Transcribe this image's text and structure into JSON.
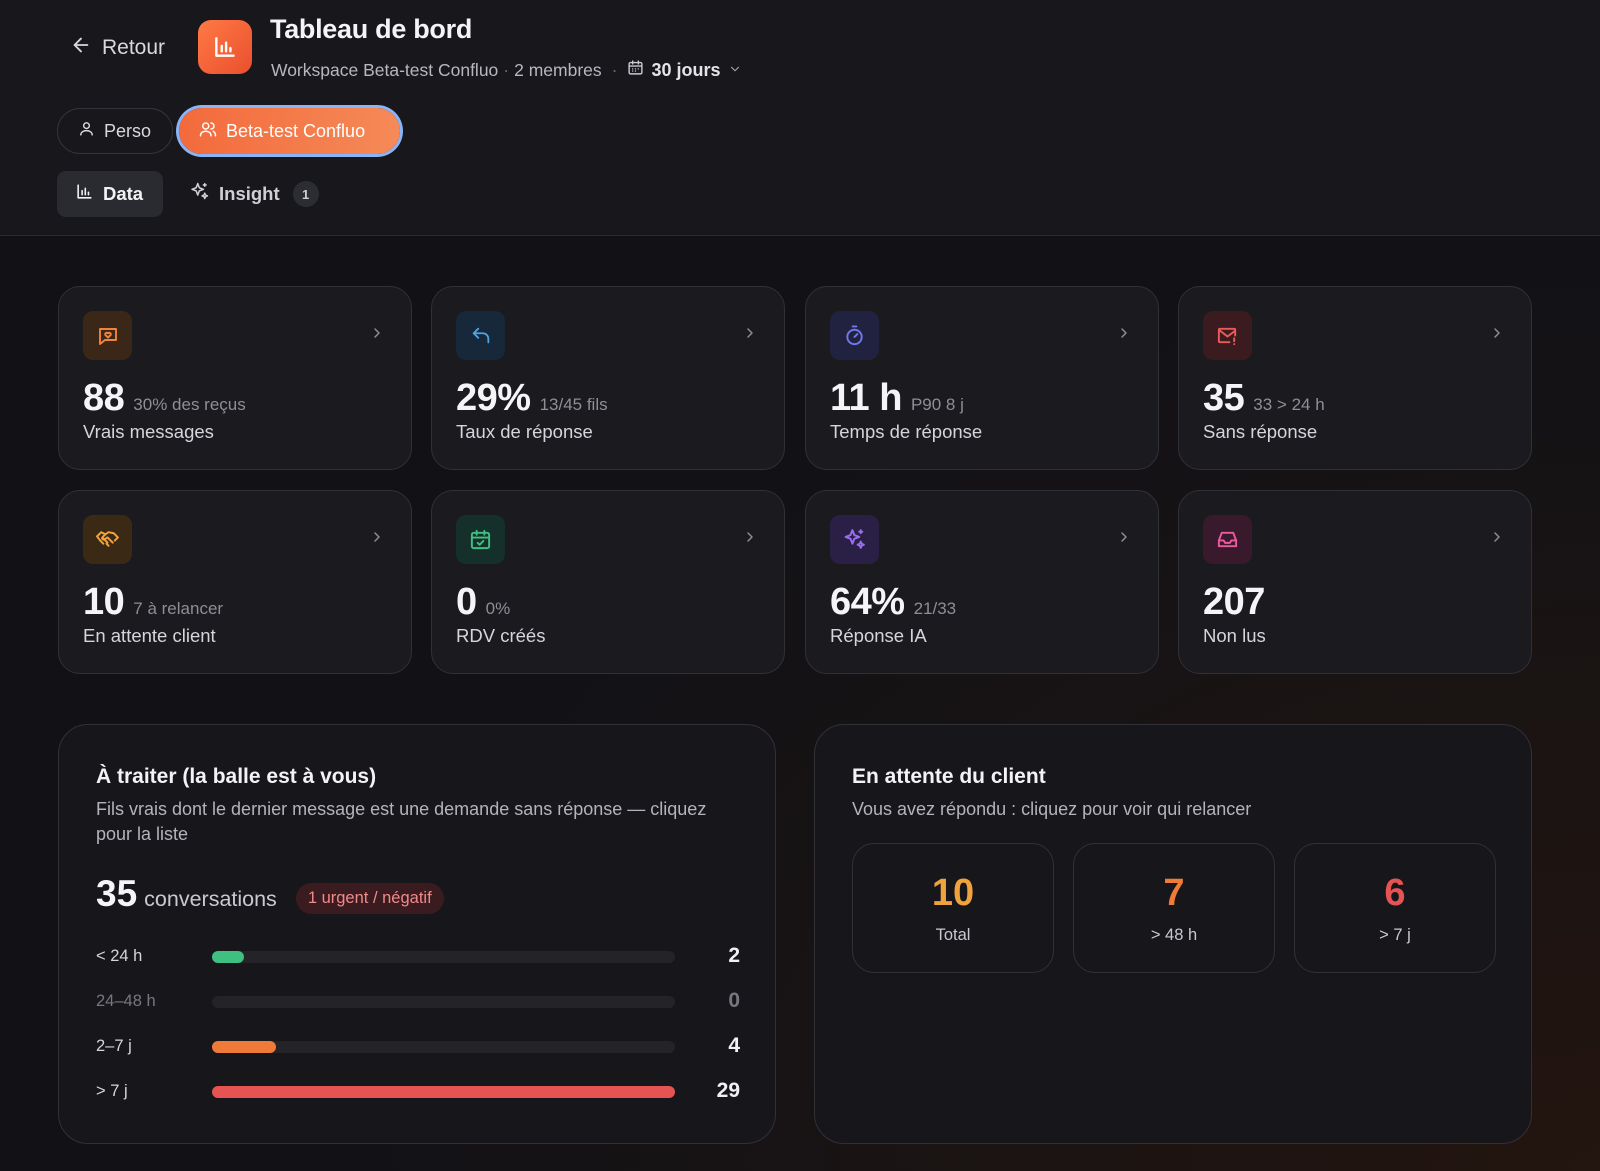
{
  "header": {
    "back_label": "Retour",
    "title": "Tableau de bord",
    "workspace": "Workspace Beta-test Confluo",
    "members": "2 membres",
    "period": "30 jours"
  },
  "scopes": [
    {
      "label": "Perso",
      "active": false
    },
    {
      "label": "Beta-test Confluo",
      "active": true
    }
  ],
  "views": {
    "data_label": "Data",
    "insight_label": "Insight",
    "insight_count": "1"
  },
  "cards": [
    {
      "value": "88",
      "sub": "30% des reçus",
      "label": "Vrais messages",
      "icon": "message-heart-icon",
      "color": "#f0843c"
    },
    {
      "value": "29%",
      "sub": "13/45 fils",
      "label": "Taux de réponse",
      "icon": "reply-icon",
      "color": "#4ea3e6"
    },
    {
      "value": "11 h",
      "sub": "P90 8 j",
      "label": "Temps de réponse",
      "icon": "timer-icon",
      "color": "#6f78f0"
    },
    {
      "value": "35",
      "sub": "33 > 24 h",
      "label": "Sans réponse",
      "icon": "mail-alert-icon",
      "color": "#ee5a5a"
    },
    {
      "value": "10",
      "sub": "7 à relancer",
      "label": "En attente client",
      "icon": "handshake-icon",
      "color": "#f0a23c"
    },
    {
      "value": "0",
      "sub": "0%",
      "label": "RDV créés",
      "icon": "calendar-check-icon",
      "color": "#3fbf80"
    },
    {
      "value": "64%",
      "sub": "21/33",
      "label": "Réponse IA",
      "icon": "sparkles-icon",
      "color": "#9a6cf0"
    },
    {
      "value": "207",
      "sub": "",
      "label": "Non lus",
      "icon": "inbox-icon",
      "color": "#ec5aa0"
    }
  ],
  "todo": {
    "title": "À traiter (la balle est à vous)",
    "description": "Fils vrais dont le dernier message est une demande sans réponse — cliquez pour la liste",
    "count": "35",
    "count_label": "conversations",
    "urgent_badge": "1 urgent / négatif",
    "buckets": [
      {
        "label": "< 24 h",
        "value": 2,
        "color": "#3fbf80"
      },
      {
        "label": "24–48 h",
        "value": 0,
        "color": "#f0a23c"
      },
      {
        "label": "2–7 j",
        "value": 4,
        "color": "#f07a38"
      },
      {
        "label": "> 7 j",
        "value": 29,
        "color": "#e55353"
      }
    ]
  },
  "waiting": {
    "title": "En attente du client",
    "description": "Vous avez répondu : cliquez pour voir qui relancer",
    "boxes": [
      {
        "value": "10",
        "label": "Total",
        "color": "#f0a23c"
      },
      {
        "value": "7",
        "label": "> 48 h",
        "color": "#f07a38"
      },
      {
        "value": "6",
        "label": "> 7 j",
        "color": "#e55353"
      }
    ]
  }
}
